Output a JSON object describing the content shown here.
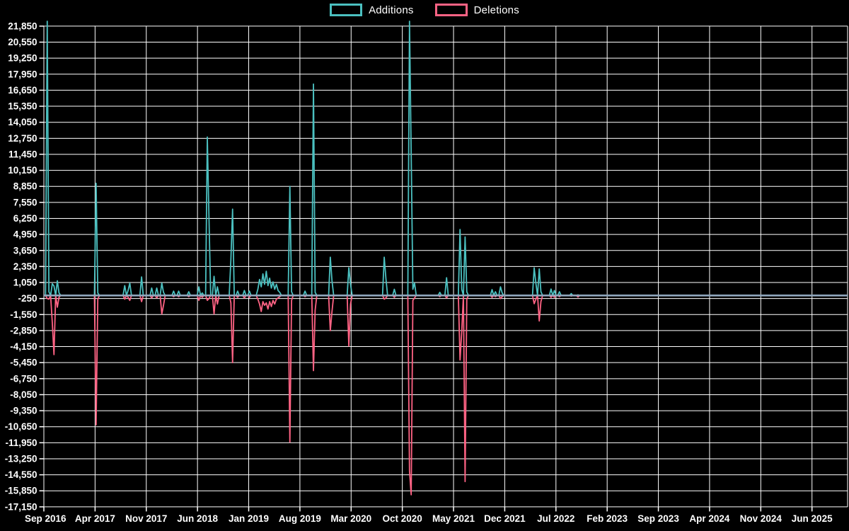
{
  "chart_data": {
    "type": "line",
    "title": "",
    "series": [
      {
        "name": "Additions",
        "color": "#4bc0c0"
      },
      {
        "name": "Deletions",
        "color": "#ff6384"
      }
    ],
    "colors": {
      "background": "#000000",
      "grid": "#ffffff",
      "tick_text": "#ffffff",
      "zero_baseline": "#8fa6bc"
    },
    "y_axis": {
      "max": 21850,
      "min": -17150,
      "step": 1300,
      "tick_labels": [
        "21,850",
        "20,550",
        "19,250",
        "17,950",
        "16,650",
        "15,350",
        "14,050",
        "12,750",
        "11,450",
        "10,150",
        "8,850",
        "7,550",
        "6,250",
        "4,950",
        "3,650",
        "2,350",
        "1,050",
        "-250",
        "-1,550",
        "-2,850",
        "-4,150",
        "-5,450",
        "-6,750",
        "-8,050",
        "-9,350",
        "-10,650",
        "-11,950",
        "-13,250",
        "-14,550",
        "-15,850",
        "-17,150"
      ]
    },
    "x_axis": {
      "tick_labels": [
        "Sep 2016",
        "Apr 2017",
        "Nov 2017",
        "Jun 2018",
        "Jan 2019",
        "Aug 2019",
        "Mar 2020",
        "Oct 2020",
        "May 2021",
        "Dec 2021",
        "Jul 2022",
        "Feb 2023",
        "Sep 2023",
        "Apr 2024",
        "Nov 2024",
        "Jun 2025"
      ],
      "months_per_tick": 7
    },
    "weeks_total": 478,
    "baseline_value": 0,
    "spikes_format": [
      "week_index",
      "additions",
      "deletions"
    ],
    "spikes": [
      [
        2,
        22250,
        -250
      ],
      [
        3,
        300,
        -300
      ],
      [
        5,
        950,
        -2200
      ],
      [
        6,
        770,
        -4800
      ],
      [
        8,
        1190,
        -950
      ],
      [
        9,
        200,
        -150
      ],
      [
        31,
        9100,
        -10500
      ],
      [
        32,
        200,
        -300
      ],
      [
        48,
        800,
        -300
      ],
      [
        50,
        400,
        -150
      ],
      [
        51,
        1000,
        -400
      ],
      [
        58,
        1500,
        -500
      ],
      [
        64,
        600,
        -200
      ],
      [
        67,
        600,
        -200
      ],
      [
        70,
        1000,
        -1500
      ],
      [
        71,
        250,
        -800
      ],
      [
        77,
        350,
        -100
      ],
      [
        80,
        350,
        -100
      ],
      [
        86,
        300,
        -100
      ],
      [
        92,
        700,
        -400
      ],
      [
        94,
        200,
        -150
      ],
      [
        97,
        12850,
        -400
      ],
      [
        98,
        6250,
        -250
      ],
      [
        101,
        1550,
        -1500
      ],
      [
        103,
        700,
        -700
      ],
      [
        111,
        2900,
        -600
      ],
      [
        112,
        7000,
        -5450
      ],
      [
        115,
        350,
        -150
      ],
      [
        119,
        400,
        -200
      ],
      [
        122,
        350,
        -150
      ],
      [
        127,
        500,
        -300
      ],
      [
        128,
        1300,
        -700
      ],
      [
        129,
        700,
        -1300
      ],
      [
        130,
        1750,
        -500
      ],
      [
        131,
        900,
        -800
      ],
      [
        132,
        1960,
        -600
      ],
      [
        133,
        800,
        -1100
      ],
      [
        134,
        1400,
        -500
      ],
      [
        135,
        600,
        -900
      ],
      [
        136,
        1100,
        -400
      ],
      [
        137,
        500,
        -700
      ],
      [
        138,
        900,
        -300
      ],
      [
        139,
        400,
        -200
      ],
      [
        140,
        250,
        -100
      ],
      [
        146,
        8850,
        -11900
      ],
      [
        147,
        300,
        -400
      ],
      [
        155,
        350,
        -100
      ],
      [
        160,
        17150,
        -6100
      ],
      [
        161,
        250,
        -1200
      ],
      [
        170,
        3100,
        -2850
      ],
      [
        171,
        1190,
        -1300
      ],
      [
        181,
        2250,
        -4100
      ],
      [
        182,
        900,
        -700
      ],
      [
        202,
        3100,
        -300
      ],
      [
        203,
        1380,
        -200
      ],
      [
        208,
        500,
        -150
      ],
      [
        217,
        22250,
        -14250
      ],
      [
        218,
        11500,
        -16170
      ],
      [
        219,
        500,
        -400
      ],
      [
        220,
        1000,
        -200
      ],
      [
        235,
        250,
        -100
      ],
      [
        239,
        1440,
        -200
      ],
      [
        247,
        5350,
        -5240
      ],
      [
        248,
        500,
        -2930
      ],
      [
        250,
        4750,
        -15100
      ],
      [
        251,
        300,
        -300
      ],
      [
        266,
        475,
        -150
      ],
      [
        268,
        300,
        -100
      ],
      [
        271,
        700,
        -250
      ],
      [
        272,
        200,
        -100
      ],
      [
        291,
        2240,
        -670
      ],
      [
        292,
        1000,
        -300
      ],
      [
        294,
        2150,
        -2070
      ],
      [
        295,
        300,
        -500
      ],
      [
        301,
        520,
        -150
      ],
      [
        303,
        400,
        -150
      ],
      [
        306,
        300,
        -100
      ],
      [
        313,
        150,
        -50
      ],
      [
        317,
        50,
        -120
      ]
    ]
  }
}
